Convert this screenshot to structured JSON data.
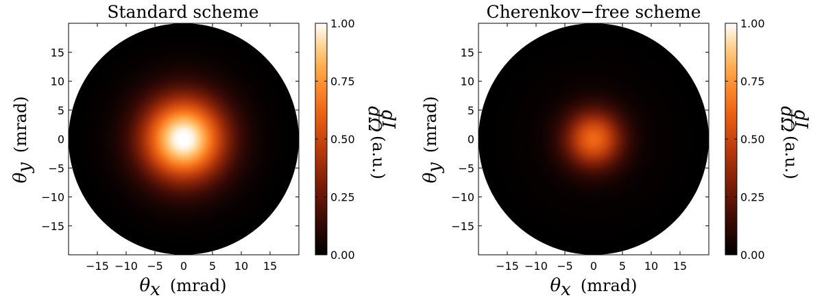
{
  "chart_data": [
    {
      "type": "heatmap",
      "title": "Standard  scheme",
      "xlabel_symbol": "θ",
      "xlabel_sub": "x",
      "xlabel_unit": "(mrad)",
      "ylabel_symbol": "θ",
      "ylabel_sub": "y",
      "ylabel_unit": "(mrad)",
      "xlim": [
        -20,
        20
      ],
      "ylim": [
        -20,
        20
      ],
      "xticks": [
        -15,
        -10,
        -5,
        0,
        5,
        10,
        15
      ],
      "yticks": [
        -15,
        -10,
        -5,
        0,
        5,
        10,
        15
      ],
      "xtick_labels": [
        "−15",
        "−10",
        "−5",
        "0",
        "5",
        "10",
        "15"
      ],
      "ytick_labels": [
        "−15",
        "−10",
        "−5",
        "0",
        "5",
        "10",
        "15"
      ],
      "aperture_radius_mrad": 20,
      "peak_center": [
        0,
        0
      ],
      "peak_value": 1.0,
      "peak_width_mrad": 5,
      "colorbar": {
        "min": 0,
        "max": 1,
        "ticks": [
          0.0,
          0.25,
          0.5,
          0.75,
          1.0
        ],
        "tick_labels": [
          "0.00",
          "0.25",
          "0.50",
          "0.75",
          "1.00"
        ],
        "label_num": "dI",
        "label_den": "dΩ",
        "label_unit": "(a.u.)",
        "colormap": "gist_heat"
      },
      "grid": false
    },
    {
      "type": "heatmap",
      "title": "Cherenkov−free  scheme",
      "xlabel_symbol": "θ",
      "xlabel_sub": "x",
      "xlabel_unit": "(mrad)",
      "ylabel_symbol": "θ",
      "ylabel_sub": "y",
      "ylabel_unit": "(mrad)",
      "xlim": [
        -20,
        20
      ],
      "ylim": [
        -20,
        20
      ],
      "xticks": [
        -15,
        -10,
        -5,
        0,
        5,
        10,
        15
      ],
      "yticks": [
        -15,
        -10,
        -5,
        0,
        5,
        10,
        15
      ],
      "xtick_labels": [
        "−15",
        "−10",
        "−5",
        "0",
        "5",
        "10",
        "15"
      ],
      "ytick_labels": [
        "−15",
        "−10",
        "−5",
        "0",
        "5",
        "10",
        "15"
      ],
      "aperture_radius_mrad": 20,
      "peak_center": [
        0,
        0
      ],
      "peak_value": 0.6,
      "peak_width_mrad": 3.5,
      "colorbar": {
        "min": 0,
        "max": 1,
        "ticks": [
          0.0,
          0.25,
          0.5,
          0.75,
          1.0
        ],
        "tick_labels": [
          "0.00",
          "0.25",
          "0.50",
          "0.75",
          "1.00"
        ],
        "label_num": "dI",
        "label_den": "dΩ",
        "label_unit": "(a.u.)",
        "colormap": "gist_heat"
      },
      "grid": false
    }
  ]
}
